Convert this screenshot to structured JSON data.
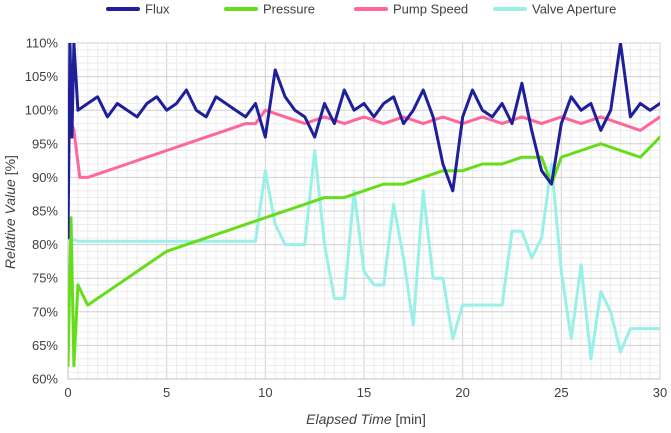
{
  "chart_data": {
    "type": "line",
    "xlabel_italic": "Elapsed Time",
    "xlabel_unit": "[min]",
    "ylabel_italic": "Relative Value",
    "ylabel_unit": "[%]",
    "xlim": [
      0,
      30
    ],
    "ylim": [
      60,
      110
    ],
    "x_ticks": [
      0,
      5,
      10,
      15,
      20,
      25,
      30
    ],
    "x_tick_labels": [
      "0",
      "5",
      "10",
      "15",
      "20",
      "25",
      "30"
    ],
    "y_ticks": [
      60,
      65,
      70,
      75,
      80,
      85,
      90,
      95,
      100,
      105,
      110
    ],
    "y_tick_labels": [
      "60%",
      "65%",
      "70%",
      "75%",
      "80%",
      "85%",
      "90%",
      "95%",
      "100%",
      "105%",
      "110%"
    ],
    "grid": true,
    "legend_position": "top",
    "series": [
      {
        "name": "Flux",
        "color": "#1f1f9a",
        "points": [
          [
            0,
            81
          ],
          [
            0.1,
            110
          ],
          [
            0.2,
            96
          ],
          [
            0.3,
            110
          ],
          [
            0.5,
            100
          ],
          [
            1,
            101
          ],
          [
            1.5,
            102
          ],
          [
            2,
            99
          ],
          [
            2.5,
            101
          ],
          [
            3,
            100
          ],
          [
            3.5,
            99
          ],
          [
            4,
            101
          ],
          [
            4.5,
            102
          ],
          [
            5,
            100
          ],
          [
            5.5,
            101
          ],
          [
            6,
            103
          ],
          [
            6.5,
            100
          ],
          [
            7,
            99
          ],
          [
            7.5,
            102
          ],
          [
            8,
            101
          ],
          [
            8.5,
            100
          ],
          [
            9,
            99
          ],
          [
            9.5,
            101
          ],
          [
            10,
            96
          ],
          [
            10.5,
            106
          ],
          [
            11,
            102
          ],
          [
            11.5,
            100
          ],
          [
            12,
            99
          ],
          [
            12.5,
            96
          ],
          [
            13,
            101
          ],
          [
            13.5,
            98
          ],
          [
            14,
            103
          ],
          [
            14.5,
            100
          ],
          [
            15,
            101
          ],
          [
            15.5,
            99
          ],
          [
            16,
            101
          ],
          [
            16.5,
            102
          ],
          [
            17,
            98
          ],
          [
            17.5,
            100
          ],
          [
            18,
            103
          ],
          [
            18.5,
            99
          ],
          [
            19,
            92
          ],
          [
            19.5,
            88
          ],
          [
            20,
            99
          ],
          [
            20.5,
            103
          ],
          [
            21,
            100
          ],
          [
            21.5,
            99
          ],
          [
            22,
            101
          ],
          [
            22.5,
            98
          ],
          [
            23,
            104
          ],
          [
            23.5,
            97
          ],
          [
            24,
            91
          ],
          [
            24.5,
            89
          ],
          [
            25,
            98
          ],
          [
            25.5,
            102
          ],
          [
            26,
            100
          ],
          [
            26.5,
            101
          ],
          [
            27,
            97
          ],
          [
            27.5,
            100
          ],
          [
            28,
            110
          ],
          [
            28.5,
            99
          ],
          [
            29,
            101
          ],
          [
            29.5,
            100
          ],
          [
            30,
            101
          ]
        ]
      },
      {
        "name": "Pressure",
        "color": "#66dd1a",
        "points": [
          [
            0,
            62
          ],
          [
            0.15,
            84
          ],
          [
            0.3,
            62
          ],
          [
            0.5,
            74
          ],
          [
            1,
            71
          ],
          [
            2,
            73
          ],
          [
            3,
            75
          ],
          [
            4,
            77
          ],
          [
            5,
            79
          ],
          [
            6,
            80
          ],
          [
            7,
            81
          ],
          [
            8,
            82
          ],
          [
            9,
            83
          ],
          [
            10,
            84
          ],
          [
            11,
            85
          ],
          [
            12,
            86
          ],
          [
            13,
            87
          ],
          [
            14,
            87
          ],
          [
            15,
            88
          ],
          [
            16,
            89
          ],
          [
            17,
            89
          ],
          [
            18,
            90
          ],
          [
            19,
            91
          ],
          [
            20,
            91
          ],
          [
            21,
            92
          ],
          [
            22,
            92
          ],
          [
            23,
            93
          ],
          [
            24,
            93
          ],
          [
            24.5,
            89
          ],
          [
            25,
            93
          ],
          [
            26,
            94
          ],
          [
            27,
            95
          ],
          [
            28,
            94
          ],
          [
            29,
            93
          ],
          [
            30,
            96
          ]
        ]
      },
      {
        "name": "Pump Speed",
        "color": "#ff6699",
        "points": [
          [
            0,
            100
          ],
          [
            0.3,
            97
          ],
          [
            0.6,
            90
          ],
          [
            1,
            90
          ],
          [
            2,
            91
          ],
          [
            3,
            92
          ],
          [
            4,
            93
          ],
          [
            5,
            94
          ],
          [
            6,
            95
          ],
          [
            7,
            96
          ],
          [
            8,
            97
          ],
          [
            9,
            98
          ],
          [
            9.5,
            98
          ],
          [
            10,
            100
          ],
          [
            11,
            99
          ],
          [
            12,
            98
          ],
          [
            13,
            99
          ],
          [
            14,
            98
          ],
          [
            15,
            99
          ],
          [
            16,
            98
          ],
          [
            17,
            99
          ],
          [
            18,
            98
          ],
          [
            19,
            99
          ],
          [
            20,
            98
          ],
          [
            21,
            99
          ],
          [
            22,
            98
          ],
          [
            23,
            99
          ],
          [
            24,
            98
          ],
          [
            25,
            99
          ],
          [
            26,
            98
          ],
          [
            27,
            99
          ],
          [
            28,
            98
          ],
          [
            29,
            97
          ],
          [
            30,
            99
          ]
        ]
      },
      {
        "name": "Valve Aperture",
        "color": "#99f0e8",
        "points": [
          [
            0,
            81
          ],
          [
            0.5,
            80.5
          ],
          [
            9.5,
            80.5
          ],
          [
            10,
            91
          ],
          [
            10.5,
            83
          ],
          [
            11,
            80
          ],
          [
            12,
            80
          ],
          [
            12.5,
            94
          ],
          [
            13,
            80
          ],
          [
            13.5,
            72
          ],
          [
            14,
            72
          ],
          [
            14.5,
            88
          ],
          [
            15,
            76
          ],
          [
            15.5,
            74
          ],
          [
            16,
            74
          ],
          [
            16.5,
            86
          ],
          [
            17,
            78
          ],
          [
            17.5,
            68
          ],
          [
            18,
            88
          ],
          [
            18.5,
            75
          ],
          [
            19,
            75
          ],
          [
            19.5,
            66
          ],
          [
            20,
            71
          ],
          [
            21,
            71
          ],
          [
            22,
            71
          ],
          [
            22.5,
            82
          ],
          [
            23,
            82
          ],
          [
            23.5,
            78
          ],
          [
            24,
            81
          ],
          [
            24.5,
            92
          ],
          [
            25,
            76
          ],
          [
            25.5,
            66
          ],
          [
            26,
            77
          ],
          [
            26.5,
            63
          ],
          [
            27,
            73
          ],
          [
            27.5,
            70
          ],
          [
            28,
            64
          ],
          [
            28.5,
            67.5
          ],
          [
            29,
            67.5
          ],
          [
            30,
            67.5
          ]
        ]
      }
    ]
  }
}
